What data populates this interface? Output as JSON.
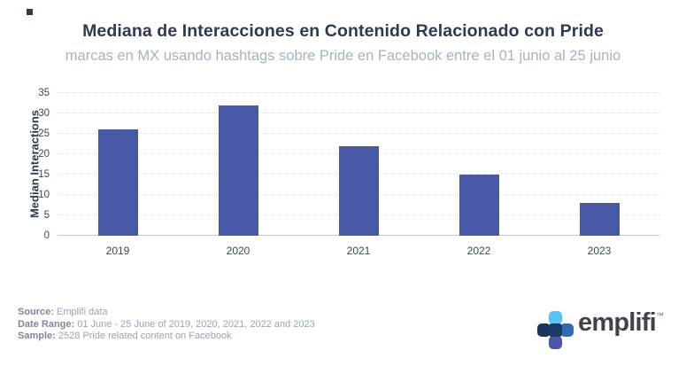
{
  "chart_data": {
    "type": "bar",
    "title": "Mediana de Interacciones en Contenido Relacionado con Pride",
    "subtitle": "marcas en MX usando hashtags sobre Pride en Facebook entre el 01 junio al 25 junio",
    "categories": [
      "2019",
      "2020",
      "2021",
      "2022",
      "2023"
    ],
    "values": [
      26,
      32,
      22,
      15,
      8
    ],
    "xlabel": "",
    "ylabel": "Median Interactions",
    "ylim": [
      0,
      35
    ],
    "ytick_step": 5,
    "grid": "horizontal-dotted",
    "legend_position": "none",
    "bar_color": "#4859a8"
  },
  "footer": {
    "lines": [
      {
        "label": "Source:",
        "value": " Emplifi data"
      },
      {
        "label": "Date Range:",
        "value": " 01 June - 25 June of 2019, 2020, 2021, 2022 and 2023"
      },
      {
        "label": "Sample:",
        "value": " 2528 Pride related content on Facebook"
      }
    ]
  },
  "logo": {
    "wordmark": "emplifi",
    "trademark": "™",
    "petal_colors": {
      "top": "#58c3ee",
      "left": "#17355f",
      "right": "#2e6cb3",
      "bottom": "#4b55a6",
      "center": "#1c3a67"
    }
  }
}
